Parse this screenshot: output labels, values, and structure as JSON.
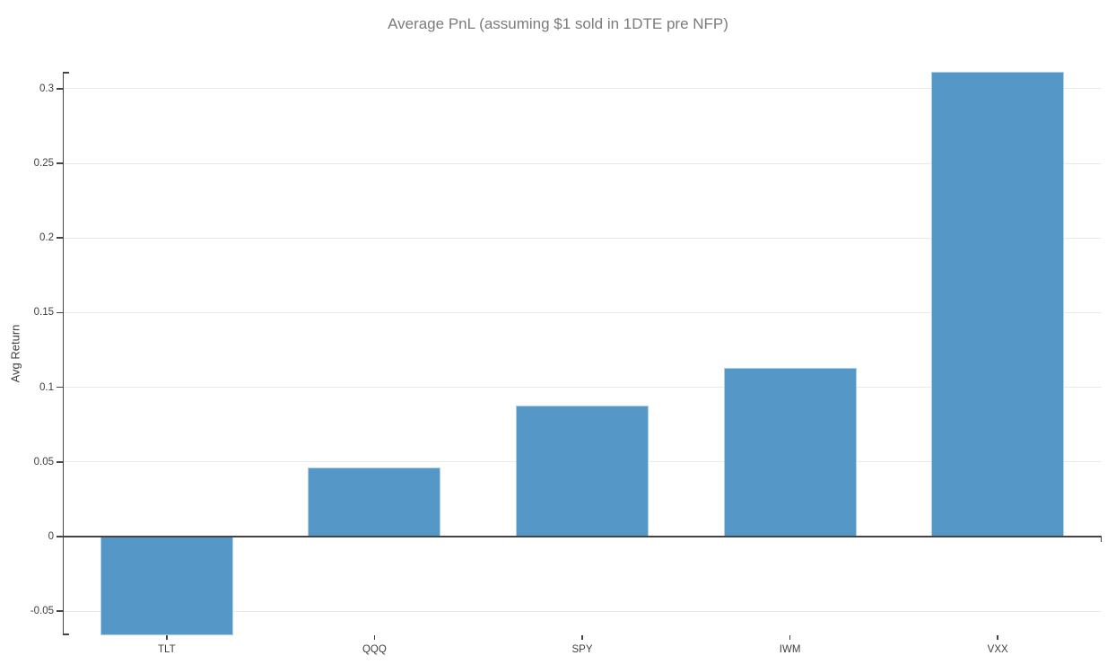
{
  "chart_data": {
    "type": "bar",
    "title": "Average PnL (assuming $1 sold in 1DTE pre NFP)",
    "xlabel": "",
    "ylabel": "Avg Return",
    "categories": [
      "TLT",
      "QQQ",
      "SPY",
      "IWM",
      "VXX"
    ],
    "values": [
      -0.066,
      0.046,
      0.088,
      0.113,
      0.311
    ],
    "ylim": [
      -0.066,
      0.311
    ],
    "yticks": [
      -0.05,
      0,
      0.05,
      0.1,
      0.15,
      0.2,
      0.25,
      0.3
    ],
    "grid": true,
    "legend": "none",
    "colors": {
      "bar": "#5598c7",
      "bar_edge": "#aed1e8",
      "axis": "#444444",
      "grid": "#eaeaea",
      "title_text": "#7b7b7b",
      "tick_text": "#3f3f3f"
    }
  }
}
